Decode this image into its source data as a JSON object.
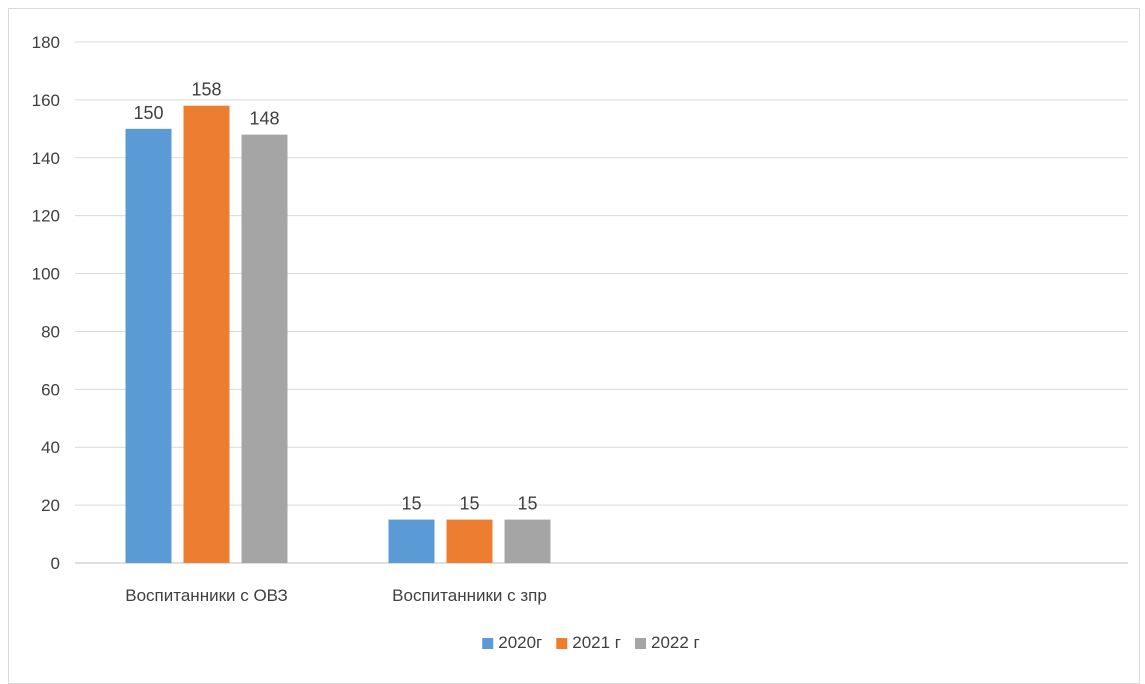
{
  "chart_data": {
    "type": "bar",
    "title": "",
    "xlabel": "",
    "ylabel": "",
    "categories": [
      "Воспитанники с ОВЗ",
      "Воспитанники с зпр"
    ],
    "series": [
      {
        "name": "2020г",
        "color": "#5B9BD5",
        "values": [
          150,
          15
        ]
      },
      {
        "name": "2021 г",
        "color": "#ED7D31",
        "values": [
          158,
          15
        ]
      },
      {
        "name": "2022 г",
        "color": "#A5A5A5",
        "values": [
          148,
          15
        ]
      }
    ],
    "ylim": [
      0,
      180
    ],
    "yticks": [
      0,
      20,
      40,
      60,
      80,
      100,
      120,
      140,
      160,
      180
    ],
    "grid": true,
    "legend_position": "bottom",
    "data_labels": true
  }
}
